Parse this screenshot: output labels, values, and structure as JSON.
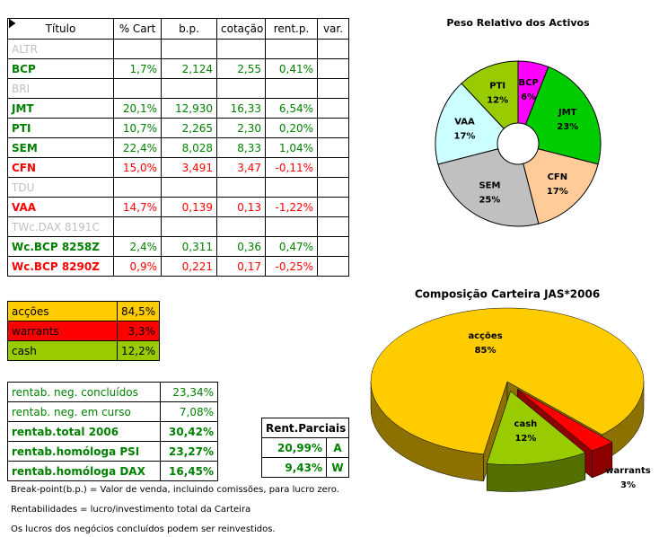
{
  "table": {
    "header": [
      "Título",
      "% Cart",
      "b.p.",
      "cotação",
      "rent.p.",
      "var."
    ],
    "rows": [
      {
        "name": "ALTR",
        "color": "#c0c0c0"
      },
      {
        "name": "BCP",
        "color": "#008000",
        "cells": [
          "1,7%",
          "2,124",
          "2,55",
          "0,41%"
        ]
      },
      {
        "name": "BRI",
        "color": "#c0c0c0"
      },
      {
        "name": "JMT",
        "color": "#008000",
        "cells": [
          "20,1%",
          "12,930",
          "16,33",
          "6,54%"
        ]
      },
      {
        "name": "PTI",
        "color": "#008000",
        "cells": [
          "10,7%",
          "2,265",
          "2,30",
          "0,20%"
        ]
      },
      {
        "name": "SEM",
        "color": "#008000",
        "cells": [
          "22,4%",
          "8,028",
          "8,33",
          "1,04%"
        ]
      },
      {
        "name": "CFN",
        "color": "#ff0000",
        "cells": [
          "15,0%",
          "3,491",
          "3,47",
          "-0,11%"
        ]
      },
      {
        "name": "TDU",
        "color": "#c0c0c0"
      },
      {
        "name": "VAA",
        "color": "#ff0000",
        "cells": [
          "14,7%",
          "0,139",
          "0,13",
          "-1,22%"
        ]
      },
      {
        "name": "TWc.DAX 8191C",
        "color": "#c0c0c0"
      },
      {
        "name": "Wc.BCP 8258Z",
        "color": "#008000",
        "cells": [
          "2,4%",
          "0,311",
          "0,36",
          "0,47%"
        ]
      },
      {
        "name": "Wc.BCP 8290Z",
        "color": "#ff0000",
        "cells": [
          "0,9%",
          "0,221",
          "0,17",
          "-0,25%"
        ]
      }
    ]
  },
  "allocation": {
    "rows": [
      {
        "label": "acções",
        "value": "84,5%",
        "color": "#ffcc00"
      },
      {
        "label": "warrants",
        "value": "3,3%",
        "color": "#ff0000"
      },
      {
        "label": "cash",
        "value": "12,2%",
        "color": "#99cc00"
      }
    ]
  },
  "returns": {
    "rows": [
      {
        "label": "rentab. neg. concluídos",
        "value": "23,34%",
        "bold": false
      },
      {
        "label": "rentab. neg. em curso",
        "value": "7,08%",
        "bold": false
      },
      {
        "label": "rentab.total 2006",
        "value": "30,42%",
        "bold": true
      },
      {
        "label": "rentab.homóloga PSI",
        "value": "23,27%",
        "bold": true
      },
      {
        "label": "rentab.homóloga DAX",
        "value": "16,45%",
        "bold": true
      }
    ]
  },
  "partial_returns": {
    "title": "Rent.Parciais",
    "rows": [
      [
        "20,99%",
        "A"
      ],
      [
        "9,43%",
        "W"
      ]
    ]
  },
  "notes": [
    "Break-point(b.p.) = Valor de venda, incluindo comissões, para lucro zero.",
    "Rentabilidades = lucro/investimento total da Carteira",
    "Os lucros dos negócios concluídos podem ser reinvestidos."
  ],
  "charts": [
    {
      "type": "doughnut",
      "title": "Peso Relativo dos Activos",
      "categories": [
        "BCP",
        "JMT",
        "CFN",
        "SEM",
        "VAA",
        "PTI"
      ],
      "values": [
        6,
        23,
        17,
        25,
        17,
        12
      ],
      "value_labels": [
        "6%",
        "23%",
        "17%",
        "25%",
        "17%",
        "12%"
      ],
      "colors": [
        "#ff00ff",
        "#00cc00",
        "#ffcc99",
        "#c0c0c0",
        "#ccffff",
        "#99cc00"
      ]
    },
    {
      "type": "pie3d",
      "title": "Composição Carteira JAS*2006",
      "categories": [
        "acções",
        "warrants",
        "cash"
      ],
      "values": [
        85,
        3,
        12
      ],
      "value_labels": [
        "85%",
        "3%",
        "12%"
      ],
      "colors": [
        "#ffcc00",
        "#ff0000",
        "#99cc00"
      ]
    }
  ]
}
